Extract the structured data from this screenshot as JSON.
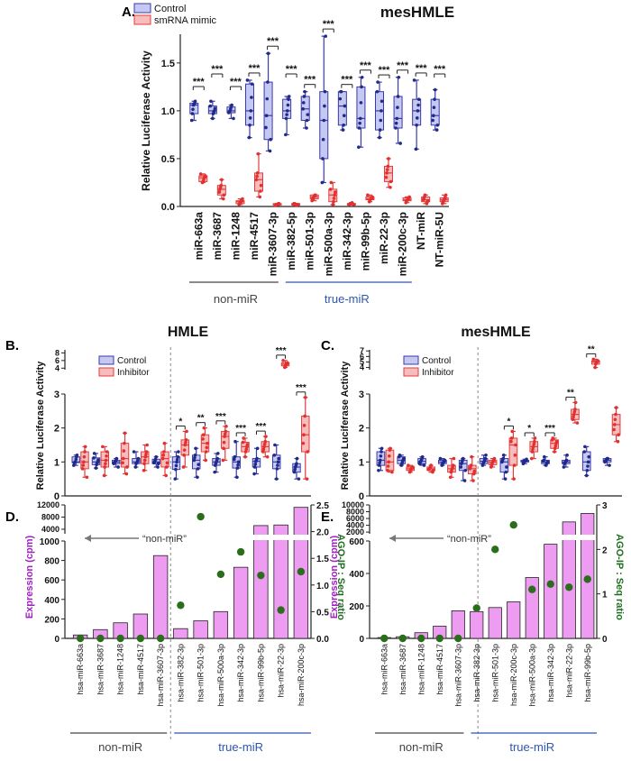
{
  "colors": {
    "control_fill": "#c5c8f0",
    "control_stroke": "#3a3aa8",
    "control_point": "#1f2a8a",
    "mimic_fill": "#f7bcbc",
    "mimic_stroke": "#e43c3c",
    "mimic_point": "#e23030",
    "bar_fill": "#ee9cf2",
    "bar_stroke": "#222222",
    "dot": "#2a6e1c",
    "expr_axis": "#a020c0",
    "ago_axis": "#1f6e1f",
    "truemir_line": "#2d56b0"
  },
  "chart_data": [
    {
      "panel": "A",
      "type": "box",
      "title": "mesHMLE",
      "ylabel": "Relative Luciferase Activity",
      "ylim": [
        0,
        1.8
      ],
      "yticks": [
        0.0,
        0.5,
        1.0,
        1.5
      ],
      "legend": [
        "Control",
        "smRNA mimic"
      ],
      "categories": [
        "miR-663a",
        "miR-3687",
        "miR-1248",
        "miR-4517",
        "miR-3607-3p",
        "miR-382-5p",
        "miR-501-3p",
        "miR-500a-3p",
        "miR-342-3p",
        "miR-99b-5p",
        "miR-22-3p",
        "miR-200c-3p",
        "NT-miR",
        "NT-miR-5U"
      ],
      "series": [
        {
          "name": "Control",
          "box": [
            [
              0.9,
              0.97,
              1.06,
              1.08,
              1.1
            ],
            [
              0.92,
              0.97,
              1.0,
              1.05,
              1.1
            ],
            [
              0.92,
              0.98,
              1.0,
              1.04,
              1.06
            ],
            [
              0.72,
              0.85,
              1.0,
              1.28,
              1.32
            ],
            [
              0.58,
              0.7,
              0.95,
              1.3,
              1.6
            ],
            [
              0.75,
              0.92,
              1.0,
              1.12,
              1.15
            ],
            [
              0.82,
              0.9,
              1.02,
              1.15,
              1.2
            ],
            [
              0.25,
              0.5,
              0.9,
              1.2,
              1.78
            ],
            [
              0.8,
              0.85,
              1.05,
              1.2,
              1.2
            ],
            [
              0.62,
              0.82,
              0.92,
              1.25,
              1.35
            ],
            [
              0.72,
              0.8,
              1.0,
              1.2,
              1.3
            ],
            [
              0.66,
              0.82,
              0.92,
              1.15,
              1.35
            ],
            [
              0.6,
              0.85,
              1.0,
              1.12,
              1.32
            ],
            [
              0.8,
              0.85,
              0.95,
              1.12,
              1.22
            ]
          ]
        },
        {
          "name": "smRNA mimic",
          "box": [
            [
              0.25,
              0.26,
              0.3,
              0.32,
              0.34
            ],
            [
              0.08,
              0.12,
              0.18,
              0.22,
              0.28
            ],
            [
              0.02,
              0.03,
              0.05,
              0.06,
              0.08
            ],
            [
              0.1,
              0.16,
              0.28,
              0.35,
              0.55
            ],
            [
              0.01,
              0.02,
              0.02,
              0.03,
              0.03
            ],
            [
              0.01,
              0.02,
              0.02,
              0.03,
              0.03
            ],
            [
              0.06,
              0.08,
              0.1,
              0.12,
              0.12
            ],
            [
              0.02,
              0.05,
              0.12,
              0.18,
              0.25
            ],
            [
              0.02,
              0.02,
              0.03,
              0.03,
              0.04
            ],
            [
              0.05,
              0.07,
              0.08,
              0.1,
              0.12
            ],
            [
              0.2,
              0.26,
              0.35,
              0.42,
              0.5
            ],
            [
              0.04,
              0.06,
              0.07,
              0.09,
              0.1
            ],
            [
              0.03,
              0.05,
              0.07,
              0.1,
              0.12
            ],
            [
              0.03,
              0.05,
              0.07,
              0.09,
              0.12
            ]
          ]
        }
      ],
      "significance": [
        "***",
        "***",
        "***",
        "***",
        "***",
        "***",
        "***",
        "***",
        "***",
        "***",
        "***",
        "***",
        "***",
        "***"
      ],
      "groups": [
        "non-miR",
        "true-miR"
      ]
    },
    {
      "panel": "B",
      "type": "box",
      "title": "HMLE",
      "ylabel": "Relative Luciferase Activity",
      "ylim": [
        0,
        3
      ],
      "yticks": [
        0,
        1,
        2,
        3
      ],
      "ybreak_ticks": [
        4,
        6,
        8
      ],
      "legend": [
        "Control",
        "Inhibitor"
      ],
      "categories": [
        "miR-663a",
        "miR-3687",
        "miR-1248",
        "miR-4517",
        "miR-3607-3p",
        "miR-382-3p",
        "miR-501-3p",
        "miR-500a-3p",
        "miR-342-3p",
        "miR-99b-5p",
        "miR-22-3p",
        "miR-200c-3p"
      ],
      "series": [
        {
          "name": "Control",
          "box": [
            [
              0.9,
              0.98,
              1.0,
              1.15,
              1.2
            ],
            [
              0.82,
              0.92,
              1.0,
              1.12,
              1.25
            ],
            [
              0.85,
              0.95,
              1.0,
              1.05,
              1.1
            ],
            [
              0.85,
              0.95,
              1.0,
              1.1,
              1.3
            ],
            [
              0.85,
              0.95,
              1.0,
              1.08,
              1.15
            ],
            [
              0.5,
              0.78,
              1.0,
              1.15,
              1.3
            ],
            [
              0.55,
              0.8,
              1.05,
              1.2,
              1.4
            ],
            [
              0.7,
              0.9,
              1.0,
              1.1,
              1.25
            ],
            [
              0.55,
              0.82,
              1.0,
              1.15,
              1.6
            ],
            [
              0.65,
              0.85,
              1.02,
              1.1,
              1.4
            ],
            [
              0.5,
              0.8,
              1.0,
              1.2,
              1.5
            ],
            [
              0.5,
              0.7,
              0.85,
              0.95,
              1.1
            ]
          ]
        },
        {
          "name": "Inhibitor",
          "box": [
            [
              0.55,
              0.8,
              1.0,
              1.3,
              1.45
            ],
            [
              0.6,
              0.85,
              1.05,
              1.3,
              1.45
            ],
            [
              0.65,
              0.85,
              1.1,
              1.55,
              1.85
            ],
            [
              0.75,
              0.95,
              1.15,
              1.3,
              1.5
            ],
            [
              0.6,
              0.85,
              1.1,
              1.3,
              1.55
            ],
            [
              0.85,
              1.2,
              1.5,
              1.65,
              1.9
            ],
            [
              1.05,
              1.3,
              1.55,
              1.8,
              2.0
            ],
            [
              1.05,
              1.4,
              1.75,
              1.9,
              2.05
            ],
            [
              1.15,
              1.3,
              1.45,
              1.58,
              1.7
            ],
            [
              1.15,
              1.3,
              1.45,
              1.6,
              1.75
            ],
            [
              4.2,
              4.6,
              5.0,
              5.4,
              6.0
            ],
            [
              0.5,
              1.3,
              1.8,
              2.35,
              2.9
            ]
          ]
        }
      ],
      "significance": [
        "",
        "",
        "",
        "",
        "",
        "*",
        "**",
        "***",
        "***",
        "***",
        "***",
        "***"
      ]
    },
    {
      "panel": "C",
      "type": "box",
      "title": "mesHMLE",
      "ylabel": "Relative Luciferase Activity",
      "ylim": [
        0,
        3
      ],
      "yticks": [
        0,
        1,
        2,
        3
      ],
      "ybreak_ticks": [
        4,
        5,
        6,
        7
      ],
      "legend": [
        "Control",
        "Inhibitor"
      ],
      "categories": [
        "miR-663a",
        "miR-3687",
        "miR-1248",
        "miR-4517",
        "miR-3607-3p",
        "miR-382-3p",
        "miR-501-3p",
        "miR-200c-3p",
        "miR-500a-3p",
        "miR-342-3p",
        "miR-22-3p",
        "miR-99b-5p"
      ],
      "series": [
        {
          "name": "Control",
          "box": [
            [
              0.75,
              0.9,
              1.05,
              1.3,
              1.4
            ],
            [
              0.9,
              0.95,
              1.05,
              1.15,
              1.2
            ],
            [
              0.9,
              0.95,
              1.02,
              1.1,
              1.15
            ],
            [
              0.9,
              0.95,
              1.0,
              1.05,
              1.1
            ],
            [
              0.45,
              0.75,
              0.95,
              1.05,
              1.1
            ],
            [
              0.9,
              0.95,
              1.02,
              1.1,
              1.2
            ],
            [
              0.5,
              0.7,
              1.0,
              1.1,
              1.2
            ],
            [
              0.95,
              1.0,
              1.02,
              1.05,
              1.08
            ],
            [
              0.9,
              0.95,
              1.0,
              1.05,
              1.15
            ],
            [
              0.85,
              0.95,
              1.0,
              1.05,
              1.2
            ],
            [
              0.6,
              0.75,
              1.0,
              1.3,
              1.45
            ],
            [
              0.9,
              1.0,
              1.05,
              1.1,
              1.1
            ]
          ]
        },
        {
          "name": "Inhibitor",
          "box": [
            [
              0.7,
              0.75,
              1.0,
              1.35,
              1.4
            ],
            [
              0.7,
              0.75,
              0.8,
              0.85,
              0.9
            ],
            [
              0.7,
              0.75,
              0.8,
              0.85,
              0.9
            ],
            [
              0.55,
              0.7,
              0.8,
              0.9,
              1.1
            ],
            [
              0.45,
              0.65,
              0.8,
              0.9,
              1.15
            ],
            [
              0.85,
              0.92,
              1.0,
              1.05,
              1.1
            ],
            [
              0.5,
              0.9,
              1.5,
              1.7,
              1.9
            ],
            [
              1.1,
              1.3,
              1.45,
              1.6,
              1.7
            ],
            [
              1.3,
              1.4,
              1.55,
              1.65,
              1.7
            ],
            [
              2.15,
              2.25,
              2.4,
              2.55,
              2.75
            ],
            [
              4.0,
              4.6,
              5.0,
              5.2,
              5.5
            ],
            [
              1.6,
              1.8,
              2.1,
              2.4,
              2.6
            ]
          ]
        }
      ],
      "significance": [
        "",
        "",
        "",
        "",
        "",
        "",
        "*",
        "*",
        "***",
        "**",
        "**",
        ""
      ]
    },
    {
      "panel": "D",
      "type": "bar+scatter",
      "ylabel": "Expression (cpm)",
      "y2label": "AGO-IP : Seq ratio",
      "ylim_lower": [
        0,
        1000
      ],
      "yticks_lower": [
        0,
        200,
        400,
        600,
        800,
        1000
      ],
      "yticks_upper": [
        4000,
        8000,
        12000
      ],
      "y2lim": [
        0,
        2.5
      ],
      "y2ticks": [
        0.0,
        0.5,
        1.0,
        1.5,
        2.0,
        2.5
      ],
      "annotation": "“non-miR”",
      "categories": [
        "hsa-miR-663a",
        "hsa-miR-3687",
        "hsa-miR-1248",
        "hsa-miR-4517",
        "hsa-miR-3607-3p",
        "hsa-miR-382-3p",
        "hsa-miR-501-3p",
        "hsa-miR-500a-3p",
        "hsa-miR-342-3p",
        "hsa-miR-99b-5p",
        "hsa-miR-22-3p",
        "hsa-miR-200c-3p"
      ],
      "expression": [
        35,
        90,
        160,
        250,
        850,
        100,
        180,
        275,
        730,
        5200,
        5400,
        11200
      ],
      "ratio": [
        0.0,
        0.0,
        0.0,
        0.0,
        0.0,
        0.62,
        2.28,
        1.2,
        1.62,
        1.18,
        0.53,
        1.25
      ],
      "groups": [
        "non-miR",
        "true-miR"
      ]
    },
    {
      "panel": "E",
      "type": "bar+scatter",
      "ylabel": "Expression (cpm)",
      "y2label": "AGO-IP : Seq ratio",
      "ylim_lower": [
        0,
        600
      ],
      "yticks_lower": [
        0,
        200,
        400,
        600
      ],
      "yticks_upper": [
        2000,
        4000,
        6000,
        8000,
        10000
      ],
      "y2lim": [
        0,
        3
      ],
      "y2ticks": [
        0,
        1,
        2,
        3
      ],
      "annotation": "“non-miR”",
      "categories": [
        "hsa-miR-663a",
        "hsa-miR-3687",
        "hsa-miR-1248",
        "hsa-miR-4517",
        "hsa-miR-3607-3p",
        "hsa-miR-382-3p",
        "hsa-miR-501-3p",
        "hsa-miR-200c-3p",
        "hsa-miR-500a-3p",
        "hsa-miR-342-3p",
        "hsa-miR-22-3p",
        "hsa-miR-99b-5p"
      ],
      "expression": [
        5,
        10,
        35,
        75,
        170,
        165,
        190,
        225,
        375,
        580,
        5000,
        7500
      ],
      "ratio": [
        0.0,
        0.0,
        0.0,
        0.0,
        0.0,
        0.68,
        2.0,
        2.55,
        1.1,
        1.22,
        1.15,
        1.33
      ],
      "groups": [
        "non-miR",
        "true-miR"
      ]
    }
  ]
}
